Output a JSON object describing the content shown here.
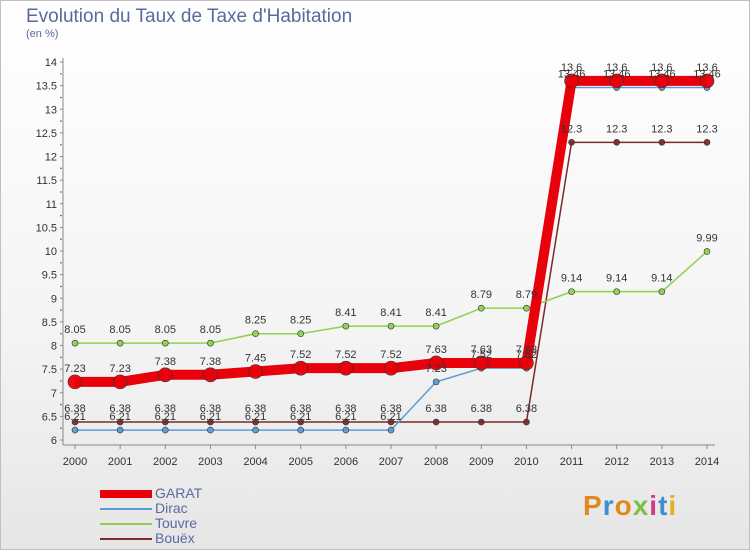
{
  "title": "Evolution du Taux de Taxe d'Habitation",
  "unit": "(en %)",
  "logo": "Proxiti",
  "chart_data": {
    "type": "line",
    "title": "Evolution du Taux de Taxe d'Habitation",
    "ylabel": "(en %)",
    "xlabel": "",
    "ylim": [
      6,
      14
    ],
    "yticks": [
      "6",
      "6.5",
      "7",
      "7.5",
      "8",
      "8.5",
      "9",
      "9.5",
      "10",
      "10.5",
      "11",
      "11.5",
      "12",
      "12.5",
      "13",
      "13.5",
      "14"
    ],
    "categories": [
      "2000",
      "2001",
      "2002",
      "2003",
      "2004",
      "2005",
      "2006",
      "2007",
      "2008",
      "2009",
      "2010",
      "2011",
      "2012",
      "2013",
      "2014"
    ],
    "grid": false,
    "legend_position": "bottom-left",
    "series": [
      {
        "name": "Bouëx",
        "color": "#7a2a2a",
        "values": [
          6.38,
          6.38,
          6.38,
          6.38,
          6.38,
          6.38,
          6.38,
          6.38,
          6.38,
          6.38,
          6.38,
          12.3,
          12.3,
          12.3,
          12.3
        ],
        "labels": [
          "6.38",
          "6.38",
          "6.38",
          "6.38",
          "6.38",
          "6.38",
          "6.38",
          "6.38",
          "6.38",
          "6.38",
          "6.38",
          "12.3",
          "12.3",
          "12.3",
          "12.3"
        ]
      },
      {
        "name": "Dirac",
        "color": "#5b9bd5",
        "values": [
          6.21,
          6.21,
          6.21,
          6.21,
          6.21,
          6.21,
          6.21,
          6.21,
          7.23,
          7.52,
          7.52,
          13.46,
          13.46,
          13.46,
          13.46
        ],
        "labels": [
          "6.21",
          "6.21",
          "6.21",
          "6.21",
          "6.21",
          "6.21",
          "6.21",
          "6.21",
          "7.23",
          "7.52",
          "7.52",
          "13.46",
          "13.46",
          "13.46",
          "13.46"
        ]
      },
      {
        "name": "Touvre",
        "color": "#8fd14f",
        "values": [
          8.05,
          8.05,
          8.05,
          8.05,
          8.25,
          8.25,
          8.41,
          8.41,
          8.41,
          8.79,
          8.79,
          9.14,
          9.14,
          9.14,
          9.99
        ],
        "labels": [
          "8.05",
          "8.05",
          "8.05",
          "8.05",
          "8.25",
          "8.25",
          "8.41",
          "8.41",
          "8.41",
          "8.79",
          "8.79",
          "9.14",
          "9.14",
          "9.14",
          "9.99"
        ]
      },
      {
        "name": "GARAT",
        "color": "#e8000b",
        "values": [
          7.23,
          7.23,
          7.38,
          7.38,
          7.45,
          7.52,
          7.52,
          7.52,
          7.63,
          7.63,
          7.63,
          13.6,
          13.6,
          13.6,
          13.6
        ],
        "labels": [
          "7.23",
          "7.23",
          "7.38",
          "7.38",
          "7.45",
          "7.52",
          "7.52",
          "7.52",
          "7.63",
          "7.63",
          "7.63",
          "13.6",
          "13.6",
          "13.6",
          "13.6"
        ]
      }
    ]
  }
}
